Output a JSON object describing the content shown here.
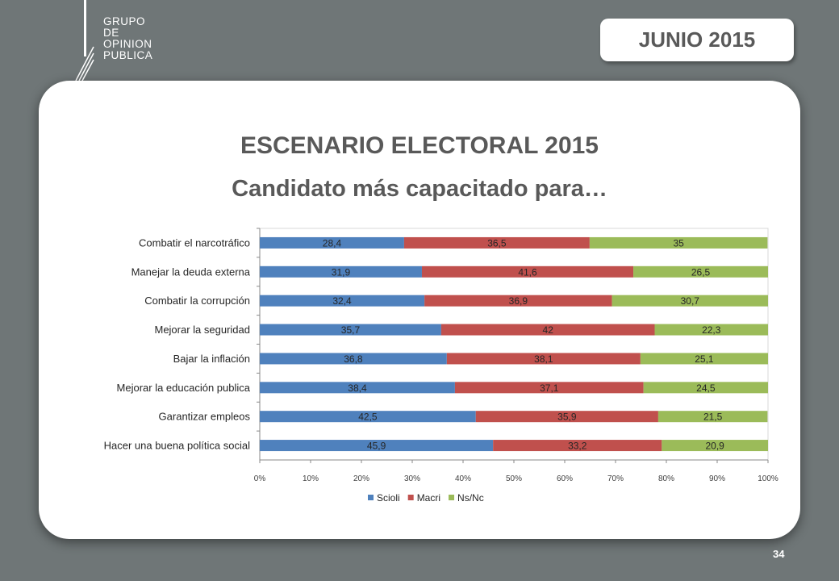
{
  "logo": {
    "lines": [
      "GRUPO",
      "DE",
      "OPINION",
      "PUBLICA"
    ]
  },
  "badge": {
    "label": "JUNIO 2015"
  },
  "titles": {
    "main": "ESCENARIO ELECTORAL 2015",
    "sub": "Candidato más capacitado para…"
  },
  "page_number": "34",
  "colors": {
    "Scioli": "#4f81bd",
    "Macri": "#c0504d",
    "Ns/Nc": "#9bbb59",
    "text": "#595959",
    "background": "#6f7677"
  },
  "chart_data": {
    "type": "bar",
    "orientation": "horizontal",
    "stacked": "percent",
    "title": "",
    "categories": [
      "Combatir el narcotráfico",
      "Manejar la deuda externa",
      "Combatir la corrupción",
      "Mejorar la seguridad",
      "Bajar la inflación",
      "Mejorar la educación publica",
      "Garantizar empleos",
      "Hacer una buena política social"
    ],
    "series": [
      {
        "name": "Scioli",
        "values": [
          28.4,
          31.9,
          32.4,
          35.7,
          36.8,
          38.4,
          42.5,
          45.9
        ],
        "labels": [
          "28,4",
          "31,9",
          "32,4",
          "35,7",
          "36,8",
          "38,4",
          "42,5",
          "45,9"
        ]
      },
      {
        "name": "Macri",
        "values": [
          36.5,
          41.6,
          36.9,
          42,
          38.1,
          37.1,
          35.9,
          33.2
        ],
        "labels": [
          "36,5",
          "41,6",
          "36,9",
          "42",
          "38,1",
          "37,1",
          "35,9",
          "33,2"
        ]
      },
      {
        "name": "Ns/Nc",
        "values": [
          35,
          26.5,
          30.7,
          22.3,
          25.1,
          24.5,
          21.5,
          20.9
        ],
        "labels": [
          "35",
          "26,5",
          "30,7",
          "22,3",
          "25,1",
          "24,5",
          "21,5",
          "20,9"
        ]
      }
    ],
    "x_ticks": [
      "0%",
      "10%",
      "20%",
      "30%",
      "40%",
      "50%",
      "60%",
      "70%",
      "80%",
      "90%",
      "100%"
    ],
    "xlim": [
      0,
      100
    ],
    "grid": false,
    "legend_position": "bottom"
  }
}
